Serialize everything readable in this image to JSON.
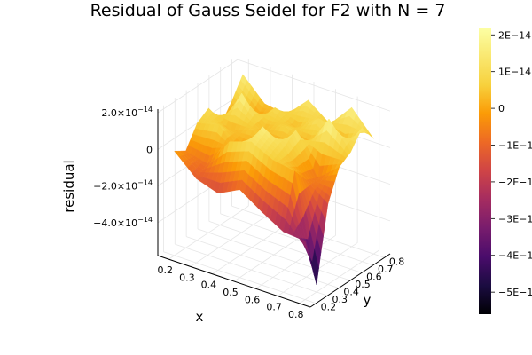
{
  "chart_data": {
    "type": "surface",
    "title": "Residual of Gauss Seidel for F2 with N = 7",
    "xlabel": "x",
    "ylabel": "y",
    "zlabel": "residual",
    "x_ticks": [
      "0.2",
      "0.3",
      "0.4",
      "0.5",
      "0.6",
      "0.7",
      "0.8"
    ],
    "y_ticks": [
      "0.2",
      "0.3",
      "0.4",
      "0.5",
      "0.6",
      "0.7",
      "0.8"
    ],
    "z_ticks": [
      {
        "value": 2e-14,
        "mantissa": "2.0×10",
        "exp": "−14"
      },
      {
        "value": 0,
        "mantissa": "0",
        "exp": ""
      },
      {
        "value": -2e-14,
        "mantissa": "−2.0×10",
        "exp": "−14"
      },
      {
        "value": -4e-14,
        "mantissa": "−4.0×10",
        "exp": "−14"
      }
    ],
    "xlim": [
      0.15,
      0.85
    ],
    "ylim": [
      0.15,
      0.85
    ],
    "zlim": [
      -5.8e-14,
      2.2e-14
    ],
    "colorbar": {
      "colormap": "inferno",
      "range": [
        -5.6e-14,
        2.2e-14
      ],
      "ticks": [
        {
          "value": 2e-14,
          "label": "2E−14"
        },
        {
          "value": 1e-14,
          "label": "1E−14"
        },
        {
          "value": 0,
          "label": "0"
        },
        {
          "value": -1e-14,
          "label": "−1E−14"
        },
        {
          "value": -2e-14,
          "label": "−2E−14"
        },
        {
          "value": -3e-14,
          "label": "−3E−14"
        },
        {
          "value": -4e-14,
          "label": "−4E−14"
        },
        {
          "value": -5e-14,
          "label": "−5E−14"
        }
      ]
    },
    "surface_approx": {
      "x": [
        0.2,
        0.3,
        0.4,
        0.5,
        0.6,
        0.7,
        0.8
      ],
      "y": [
        0.2,
        0.3,
        0.4,
        0.5,
        0.6,
        0.7,
        0.8
      ],
      "z_rows_by_y": [
        [
          -1e-15,
          -1.2e-14,
          -1.6e-14,
          -1e-14,
          -1.8e-14,
          -2.5e-14,
          -2.6e-14
        ],
        [
          -5e-15,
          -8e-15,
          8e-15,
          1.2e-14,
          6e-15,
          4e-15,
          -5.4e-14
        ],
        [
          6e-15,
          9e-15,
          -4e-15,
          1.6e-14,
          9e-15,
          -5e-15,
          -1.4e-14
        ],
        [
          1e-14,
          2e-15,
          6e-15,
          -3e-15,
          1.4e-14,
          -8e-15,
          2e-15
        ],
        [
          -4e-15,
          1.8e-14,
          3e-15,
          8e-15,
          1e-15,
          2e-14,
          6e-15
        ],
        [
          5e-15,
          -3e-15,
          1e-14,
          3e-15,
          1.2e-14,
          -2e-15,
          1.5e-14
        ],
        [
          1.6e-14,
          4e-15,
          2e-15,
          1.4e-14,
          5e-15,
          1.8e-14,
          5e-15
        ]
      ]
    },
    "grid": true
  }
}
